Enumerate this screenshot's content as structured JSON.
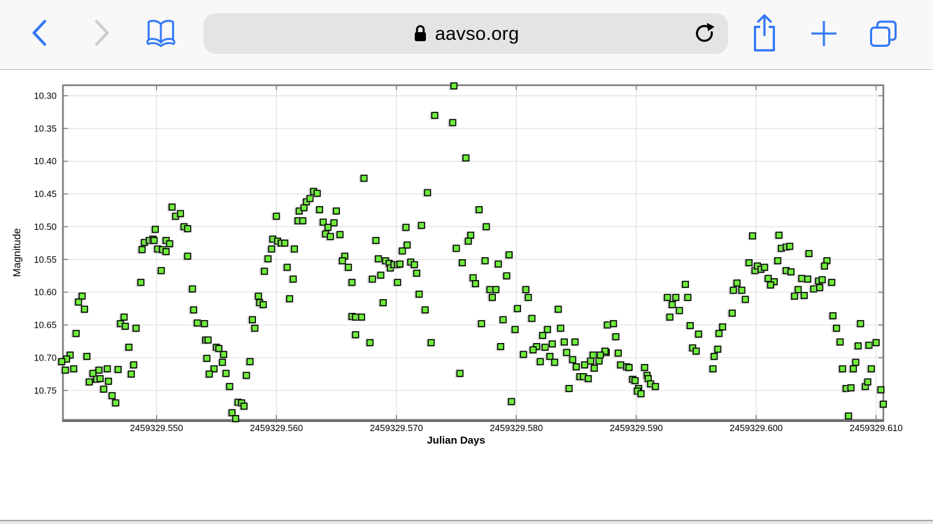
{
  "browser": {
    "url": "aavso.org",
    "icons": {
      "back": "chevron-left",
      "forward": "chevron-right",
      "bookmarks": "open-book",
      "lock": "padlock",
      "reload": "clockwise-circular-arrow",
      "share": "box-with-up-arrow",
      "new_tab": "plus",
      "tabs": "overlapping-squares"
    },
    "accent_color": "#3478f6",
    "disabled_color": "#cdcdd1"
  },
  "chart_data": {
    "type": "scatter",
    "title": "",
    "xlabel": "Julian Days",
    "ylabel": "Magnitude",
    "y_inverted": true,
    "xlim": [
      2459329.5422,
      2459329.6106
    ],
    "ylim": [
      10.284,
      10.795
    ],
    "grid": true,
    "x_ticks": [
      {
        "value": 2459329.55,
        "label": "2459329.550"
      },
      {
        "value": 2459329.56,
        "label": "2459329.560"
      },
      {
        "value": 2459329.57,
        "label": "2459329.570"
      },
      {
        "value": 2459329.58,
        "label": "2459329.580"
      },
      {
        "value": 2459329.59,
        "label": "2459329.590"
      },
      {
        "value": 2459329.6,
        "label": "2459329.600"
      },
      {
        "value": 2459329.61,
        "label": "2459329.610"
      }
    ],
    "y_ticks": [
      {
        "value": 10.3,
        "label": "10.30"
      },
      {
        "value": 10.35,
        "label": "10.35"
      },
      {
        "value": 10.4,
        "label": "10.40"
      },
      {
        "value": 10.45,
        "label": "10.45"
      },
      {
        "value": 10.5,
        "label": "10.50"
      },
      {
        "value": 10.55,
        "label": "10.55"
      },
      {
        "value": 10.6,
        "label": "10.60"
      },
      {
        "value": 10.65,
        "label": "10.65"
      },
      {
        "value": 10.7,
        "label": "10.70"
      },
      {
        "value": 10.75,
        "label": "10.75"
      }
    ],
    "colors": {
      "marker_fill": "#6fee3c",
      "marker_stroke": "#000000",
      "grid": "#e2e2e2",
      "frame": "#7f7f7f"
    },
    "marker": {
      "shape": "square",
      "size": 8.6
    },
    "points": [
      [
        2459329.5513,
        10.47
      ],
      [
        2459329.5516,
        10.484
      ],
      [
        2459329.552,
        10.48
      ],
      [
        2459329.5523,
        10.5
      ],
      [
        2459329.5526,
        10.503
      ],
      [
        2459329.5499,
        10.504
      ],
      [
        2459329.549,
        10.524
      ],
      [
        2459329.5494,
        10.521
      ],
      [
        2459329.5497,
        10.519
      ],
      [
        2459329.5498,
        10.521
      ],
      [
        2459329.5501,
        10.534
      ],
      [
        2459329.5488,
        10.535
      ],
      [
        2459329.5505,
        10.535
      ],
      [
        2459329.5508,
        10.521
      ],
      [
        2459329.5508,
        10.538
      ],
      [
        2459329.5511,
        10.526
      ],
      [
        2459329.5526,
        10.545
      ],
      [
        2459329.5504,
        10.567
      ],
      [
        2459329.5487,
        10.585
      ],
      [
        2459329.553,
        10.595
      ],
      [
        2459329.5438,
        10.606
      ],
      [
        2459329.5435,
        10.615
      ],
      [
        2459329.544,
        10.626
      ],
      [
        2459329.5531,
        10.627
      ],
      [
        2459329.5473,
        10.638
      ],
      [
        2459329.547,
        10.648
      ],
      [
        2459329.5474,
        10.652
      ],
      [
        2459329.5534,
        10.647
      ],
      [
        2459329.554,
        10.648
      ],
      [
        2459329.5483,
        10.655
      ],
      [
        2459329.5433,
        10.663
      ],
      [
        2459329.5541,
        10.673
      ],
      [
        2459329.5477,
        10.684
      ],
      [
        2459329.5442,
        10.698
      ],
      [
        2459329.5428,
        10.696
      ],
      [
        2459329.5425,
        10.702
      ],
      [
        2459329.5421,
        10.706
      ],
      [
        2459329.5481,
        10.711
      ],
      [
        2459329.5424,
        10.719
      ],
      [
        2459329.5431,
        10.717
      ],
      [
        2459329.5459,
        10.717
      ],
      [
        2459329.5468,
        10.718
      ],
      [
        2459329.5452,
        10.719
      ],
      [
        2459329.5479,
        10.725
      ],
      [
        2459329.5447,
        10.724
      ],
      [
        2459329.545,
        10.733
      ],
      [
        2459329.5453,
        10.732
      ],
      [
        2459329.5444,
        10.737
      ],
      [
        2459329.546,
        10.736
      ],
      [
        2459329.5456,
        10.748
      ],
      [
        2459329.5463,
        10.758
      ],
      [
        2459329.5466,
        10.769
      ],
      [
        2459329.5542,
        10.701
      ],
      [
        2459329.56,
        10.484
      ],
      [
        2459329.5619,
        10.476
      ],
      [
        2459329.5623,
        10.471
      ],
      [
        2459329.5625,
        10.462
      ],
      [
        2459329.5628,
        10.457
      ],
      [
        2459329.5631,
        10.446
      ],
      [
        2459329.5634,
        10.449
      ],
      [
        2459329.5636,
        10.474
      ],
      [
        2459329.565,
        10.476
      ],
      [
        2459329.5618,
        10.491
      ],
      [
        2459329.5622,
        10.491
      ],
      [
        2459329.5639,
        10.493
      ],
      [
        2459329.5648,
        10.494
      ],
      [
        2459329.5643,
        10.501
      ],
      [
        2459329.5641,
        10.511
      ],
      [
        2459329.5645,
        10.515
      ],
      [
        2459329.5653,
        10.512
      ],
      [
        2459329.5597,
        10.519
      ],
      [
        2459329.5601,
        10.522
      ],
      [
        2459329.5604,
        10.525
      ],
      [
        2459329.5607,
        10.525
      ],
      [
        2459329.5596,
        10.534
      ],
      [
        2459329.5615,
        10.534
      ],
      [
        2459329.5593,
        10.549
      ],
      [
        2459329.5657,
        10.545
      ],
      [
        2459329.5655,
        10.552
      ],
      [
        2459329.566,
        10.562
      ],
      [
        2459329.559,
        10.568
      ],
      [
        2459329.5609,
        10.562
      ],
      [
        2459329.5614,
        10.58
      ],
      [
        2459329.5663,
        10.585
      ],
      [
        2459329.5585,
        10.606
      ],
      [
        2459329.5586,
        10.616
      ],
      [
        2459329.5589,
        10.619
      ],
      [
        2459329.5611,
        10.61
      ],
      [
        2459329.5663,
        10.637
      ],
      [
        2459329.558,
        10.642
      ],
      [
        2459329.5582,
        10.655
      ],
      [
        2459329.5543,
        10.673
      ],
      [
        2459329.555,
        10.684
      ],
      [
        2459329.5552,
        10.686
      ],
      [
        2459329.5556,
        10.695
      ],
      [
        2459329.5555,
        10.707
      ],
      [
        2459329.5578,
        10.706
      ],
      [
        2459329.5548,
        10.717
      ],
      [
        2459329.5544,
        10.725
      ],
      [
        2459329.5558,
        10.724
      ],
      [
        2459329.5575,
        10.727
      ],
      [
        2459329.5561,
        10.744
      ],
      [
        2459329.5568,
        10.768
      ],
      [
        2459329.5571,
        10.769
      ],
      [
        2459329.5573,
        10.774
      ],
      [
        2459329.5563,
        10.784
      ],
      [
        2459329.5566,
        10.793
      ],
      [
        2459329.5748,
        10.285
      ],
      [
        2459329.5732,
        10.33
      ],
      [
        2459329.5747,
        10.341
      ],
      [
        2459329.5758,
        10.395
      ],
      [
        2459329.5673,
        10.426
      ],
      [
        2459329.5726,
        10.448
      ],
      [
        2459329.5769,
        10.474
      ],
      [
        2459329.5708,
        10.501
      ],
      [
        2459329.5721,
        10.498
      ],
      [
        2459329.5775,
        10.5
      ],
      [
        2459329.5683,
        10.521
      ],
      [
        2459329.5762,
        10.513
      ],
      [
        2459329.576,
        10.522
      ],
      [
        2459329.5709,
        10.528
      ],
      [
        2459329.5705,
        10.537
      ],
      [
        2459329.575,
        10.533
      ],
      [
        2459329.5685,
        10.549
      ],
      [
        2459329.5691,
        10.552
      ],
      [
        2459329.5694,
        10.556
      ],
      [
        2459329.5695,
        10.563
      ],
      [
        2459329.5698,
        10.558
      ],
      [
        2459329.5701,
        10.558
      ],
      [
        2459329.5703,
        10.557
      ],
      [
        2459329.5712,
        10.554
      ],
      [
        2459329.5715,
        10.558
      ],
      [
        2459329.5717,
        10.571
      ],
      [
        2459329.5774,
        10.552
      ],
      [
        2459329.5755,
        10.555
      ],
      [
        2459329.5785,
        10.557
      ],
      [
        2459329.568,
        10.58
      ],
      [
        2459329.5687,
        10.574
      ],
      [
        2459329.5701,
        10.585
      ],
      [
        2459329.5764,
        10.578
      ],
      [
        2459329.5766,
        10.587
      ],
      [
        2459329.5778,
        10.596
      ],
      [
        2459329.5783,
        10.596
      ],
      [
        2459329.578,
        10.608
      ],
      [
        2459329.5719,
        10.603
      ],
      [
        2459329.5689,
        10.616
      ],
      [
        2459329.5724,
        10.627
      ],
      [
        2459329.5666,
        10.638
      ],
      [
        2459329.5671,
        10.638
      ],
      [
        2459329.5771,
        10.648
      ],
      [
        2459329.5666,
        10.665
      ],
      [
        2459329.5678,
        10.677
      ],
      [
        2459329.5729,
        10.677
      ],
      [
        2459329.5787,
        10.683
      ],
      [
        2459329.5753,
        10.724
      ],
      [
        2459329.5794,
        10.543
      ],
      [
        2459329.5792,
        10.575
      ],
      [
        2459329.5808,
        10.596
      ],
      [
        2459329.581,
        10.608
      ],
      [
        2459329.5801,
        10.625
      ],
      [
        2459329.5835,
        10.626
      ],
      [
        2459329.5789,
        10.642
      ],
      [
        2459329.5813,
        10.64
      ],
      [
        2459329.5799,
        10.657
      ],
      [
        2459329.5826,
        10.657
      ],
      [
        2459329.5837,
        10.655
      ],
      [
        2459329.5822,
        10.666
      ],
      [
        2459329.5817,
        10.683
      ],
      [
        2459329.5814,
        10.688
      ],
      [
        2459329.5824,
        10.684
      ],
      [
        2459329.583,
        10.679
      ],
      [
        2459329.584,
        10.676
      ],
      [
        2459329.5849,
        10.676
      ],
      [
        2459329.5806,
        10.695
      ],
      [
        2459329.5842,
        10.692
      ],
      [
        2459329.5828,
        10.698
      ],
      [
        2459329.582,
        10.706
      ],
      [
        2459329.5832,
        10.707
      ],
      [
        2459329.5862,
        10.705
      ],
      [
        2459329.5875,
        10.692
      ],
      [
        2459329.5876,
        10.65
      ],
      [
        2459329.5881,
        10.648
      ],
      [
        2459329.5883,
        10.668
      ],
      [
        2459329.5874,
        10.69
      ],
      [
        2459329.5885,
        10.693
      ],
      [
        2459329.5847,
        10.703
      ],
      [
        2459329.5864,
        10.696
      ],
      [
        2459329.5869,
        10.705
      ],
      [
        2459329.587,
        10.696
      ],
      [
        2459329.585,
        10.714
      ],
      [
        2459329.5857,
        10.711
      ],
      [
        2459329.5865,
        10.716
      ],
      [
        2459329.5887,
        10.711
      ],
      [
        2459329.5892,
        10.714
      ],
      [
        2459329.5894,
        10.715
      ],
      [
        2459329.5853,
        10.729
      ],
      [
        2459329.5856,
        10.729
      ],
      [
        2459329.586,
        10.732
      ],
      [
        2459329.5897,
        10.733
      ],
      [
        2459329.5899,
        10.735
      ],
      [
        2459329.5907,
        10.715
      ],
      [
        2459329.5902,
        10.747
      ],
      [
        2459329.5901,
        10.751
      ],
      [
        2459329.5904,
        10.755
      ],
      [
        2459329.5844,
        10.747
      ],
      [
        2459329.5796,
        10.767
      ],
      [
        2459329.5909,
        10.727
      ],
      [
        2459329.5997,
        10.514
      ],
      [
        2459329.6019,
        10.513
      ],
      [
        2459329.6021,
        10.533
      ],
      [
        2459329.6025,
        10.531
      ],
      [
        2459329.6028,
        10.53
      ],
      [
        2459329.5994,
        10.555
      ],
      [
        2459329.5999,
        10.567
      ],
      [
        2459329.6001,
        10.56
      ],
      [
        2459329.6004,
        10.565
      ],
      [
        2459329.6007,
        10.562
      ],
      [
        2459329.6018,
        10.552
      ],
      [
        2459329.601,
        10.579
      ],
      [
        2459329.6015,
        10.584
      ],
      [
        2459329.6012,
        10.589
      ],
      [
        2459329.6025,
        10.567
      ],
      [
        2459329.6029,
        10.569
      ],
      [
        2459329.6032,
        10.606
      ],
      [
        2459329.5941,
        10.588
      ],
      [
        2459329.5984,
        10.586
      ],
      [
        2459329.5981,
        10.597
      ],
      [
        2459329.5988,
        10.597
      ],
      [
        2459329.5926,
        10.608
      ],
      [
        2459329.5933,
        10.608
      ],
      [
        2459329.5943,
        10.608
      ],
      [
        2459329.593,
        10.619
      ],
      [
        2459329.5936,
        10.628
      ],
      [
        2459329.5928,
        10.638
      ],
      [
        2459329.5991,
        10.611
      ],
      [
        2459329.598,
        10.632
      ],
      [
        2459329.5945,
        10.651
      ],
      [
        2459329.5972,
        10.653
      ],
      [
        2459329.5952,
        10.664
      ],
      [
        2459329.5969,
        10.663
      ],
      [
        2459329.5947,
        10.685
      ],
      [
        2459329.595,
        10.69
      ],
      [
        2459329.5968,
        10.687
      ],
      [
        2459329.5965,
        10.698
      ],
      [
        2459329.5964,
        10.717
      ],
      [
        2459329.591,
        10.732
      ],
      [
        2459329.5912,
        10.74
      ],
      [
        2459329.5916,
        10.744
      ],
      [
        2459329.6044,
        10.541
      ],
      [
        2459329.6059,
        10.552
      ],
      [
        2459329.6057,
        10.56
      ],
      [
        2459329.6038,
        10.579
      ],
      [
        2459329.6043,
        10.58
      ],
      [
        2459329.6052,
        10.583
      ],
      [
        2459329.6055,
        10.581
      ],
      [
        2459329.6063,
        10.585
      ],
      [
        2459329.6048,
        10.595
      ],
      [
        2459329.6053,
        10.593
      ],
      [
        2459329.6035,
        10.596
      ],
      [
        2459329.604,
        10.605
      ],
      [
        2459329.6064,
        10.636
      ],
      [
        2459329.6087,
        10.648
      ],
      [
        2459329.6067,
        10.655
      ],
      [
        2459329.607,
        10.676
      ],
      [
        2459329.6085,
        10.682
      ],
      [
        2459329.6094,
        10.681
      ],
      [
        2459329.61,
        10.677
      ],
      [
        2459329.6083,
        10.707
      ],
      [
        2459329.6072,
        10.717
      ],
      [
        2459329.6081,
        10.717
      ],
      [
        2459329.6096,
        10.717
      ],
      [
        2459329.6075,
        10.747
      ],
      [
        2459329.6079,
        10.746
      ],
      [
        2459329.6091,
        10.744
      ],
      [
        2459329.6093,
        10.737
      ],
      [
        2459329.6104,
        10.749
      ],
      [
        2459329.6106,
        10.771
      ],
      [
        2459329.6077,
        10.789
      ]
    ]
  }
}
